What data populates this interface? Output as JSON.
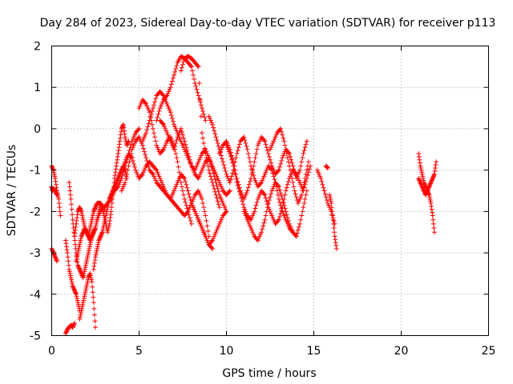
{
  "chart_data": {
    "type": "scatter",
    "title": "Day 284 of 2023, Sidereal Day-to-day VTEC variation (SDTVAR) for receiver p113",
    "xlabel": "GPS time / hours",
    "ylabel": "SDTVAR / TECUs",
    "xlim": [
      0,
      25
    ],
    "ylim": [
      -5,
      2
    ],
    "xticks": [
      0,
      5,
      10,
      15,
      20,
      25
    ],
    "yticks": [
      -5,
      -4,
      -3,
      -2,
      -1,
      0,
      1,
      2
    ],
    "xtick_labels": [
      "0",
      "5",
      "10",
      "15",
      "20",
      "25"
    ],
    "ytick_labels": [
      "-5",
      "-4",
      "-3",
      "-2",
      "-1",
      "0",
      "1",
      "2"
    ],
    "grid": true,
    "marker": "+",
    "series_color": "#ff0000",
    "series": [
      {
        "name": "s1",
        "x": [
          0.0,
          0.1,
          0.2,
          0.3,
          0.4,
          0.5
        ],
        "y": [
          -0.9,
          -1.0,
          -1.2,
          -1.5,
          -1.7,
          -2.1
        ]
      },
      {
        "name": "s2",
        "x": [
          0.0,
          0.1,
          0.2,
          0.3
        ],
        "y": [
          -2.9,
          -3.0,
          -3.1,
          -3.2
        ]
      },
      {
        "name": "s3",
        "x": [
          0.0,
          0.05,
          0.1,
          0.2,
          0.3
        ],
        "y": [
          -1.4,
          -1.5,
          -1.45,
          -1.5,
          -1.6
        ]
      },
      {
        "name": "s4",
        "x": [
          0.8,
          0.9,
          1.0,
          1.1,
          1.2,
          1.3
        ],
        "y": [
          -4.95,
          -4.85,
          -4.8,
          -4.75,
          -4.8,
          -4.7
        ]
      },
      {
        "name": "s5",
        "x": [
          0.8,
          0.9,
          1.0,
          1.1,
          1.2,
          1.3,
          1.4,
          1.5,
          1.6
        ],
        "y": [
          -2.7,
          -3.0,
          -3.4,
          -3.6,
          -3.8,
          -3.9,
          -4.0,
          -4.2,
          -4.4
        ]
      },
      {
        "name": "s6",
        "x": [
          1.0,
          1.1,
          1.2,
          1.3,
          1.4,
          1.5,
          1.6,
          1.7,
          1.8,
          1.9,
          2.0,
          2.1,
          2.2,
          2.3,
          2.4,
          2.5
        ],
        "y": [
          -1.3,
          -1.7,
          -2.2,
          -2.6,
          -3.0,
          -3.3,
          -3.4,
          -3.5,
          -3.6,
          -3.4,
          -3.2,
          -3.0,
          -2.8,
          -2.6,
          -2.5,
          -2.4
        ]
      },
      {
        "name": "s7",
        "x": [
          1.3,
          1.4,
          1.5,
          1.6,
          1.7,
          1.8,
          1.9,
          2.0,
          2.1,
          2.2,
          2.3,
          2.4,
          2.5,
          2.6,
          2.7,
          2.8,
          2.9,
          3.0,
          3.1,
          3.2,
          3.3,
          3.4,
          3.5,
          3.6,
          3.7,
          3.8,
          3.9,
          4.0,
          4.1,
          4.2,
          4.3,
          4.4
        ],
        "y": [
          -2.6,
          -2.3,
          -2.0,
          -1.9,
          -2.0,
          -2.2,
          -2.4,
          -2.5,
          -2.6,
          -2.7,
          -2.6,
          -2.5,
          -2.4,
          -2.2,
          -2.0,
          -1.8,
          -1.9,
          -2.1,
          -2.3,
          -2.5,
          -2.3,
          -2.0,
          -1.6,
          -1.2,
          -0.9,
          -0.6,
          -0.3,
          0.0,
          0.1,
          -0.2,
          -0.4,
          -0.3
        ]
      },
      {
        "name": "s8",
        "x": [
          1.4,
          1.5,
          1.6,
          1.7,
          1.8,
          1.9,
          2.0,
          2.1,
          2.2,
          2.3,
          2.4,
          2.5,
          2.6,
          2.7,
          2.8,
          2.9,
          3.0
        ],
        "y": [
          -3.2,
          -3.0,
          -2.8,
          -2.6,
          -2.5,
          -2.4,
          -2.5,
          -2.6,
          -2.4,
          -2.2,
          -2.0,
          -1.9,
          -1.8,
          -1.8,
          -1.8,
          -1.9,
          -2.0
        ]
      },
      {
        "name": "s9",
        "x": [
          1.6,
          1.7,
          1.8,
          1.9,
          2.0,
          2.1,
          2.2,
          2.3,
          2.4,
          2.5
        ],
        "y": [
          -4.6,
          -4.4,
          -4.2,
          -4.0,
          -3.8,
          -3.6,
          -3.5,
          -3.7,
          -4.2,
          -4.8
        ]
      },
      {
        "name": "s10",
        "x": [
          2.4,
          2.5,
          2.6,
          2.7,
          2.8,
          2.9,
          3.0,
          3.1,
          3.2,
          3.3,
          3.4,
          3.5,
          3.6,
          3.7,
          3.8,
          3.9,
          4.0,
          4.1,
          4.2,
          4.3
        ],
        "y": [
          -3.4,
          -3.1,
          -2.9,
          -2.7,
          -2.6,
          -2.5,
          -2.3,
          -2.1,
          -1.9,
          -1.7,
          -1.6,
          -1.5,
          -1.4,
          -1.3,
          -1.2,
          -1.1,
          -1.0,
          -0.9,
          -1.0,
          -1.2
        ]
      },
      {
        "name": "s11",
        "x": [
          2.6,
          2.8,
          3.0,
          3.2,
          3.4,
          3.6,
          3.8,
          4.0,
          4.2,
          4.4,
          4.6,
          4.8,
          5.0
        ],
        "y": [
          -2.2,
          -2.0,
          -1.9,
          -1.8,
          -1.7,
          -1.5,
          -1.4,
          -1.2,
          -0.9,
          -0.6,
          -0.3,
          -0.1,
          0.0
        ]
      },
      {
        "name": "s12",
        "x": [
          4.0,
          4.2,
          4.4,
          4.6,
          4.8,
          5.0,
          5.2,
          5.4,
          5.6,
          5.8,
          6.0,
          6.2,
          6.4,
          6.6,
          6.8,
          7.0,
          7.2,
          7.4,
          7.6,
          7.8,
          8.0,
          8.2,
          8.4,
          8.6,
          8.8,
          9.0
        ],
        "y": [
          -1.5,
          -1.3,
          -0.9,
          -0.5,
          -0.3,
          -0.2,
          -0.4,
          -0.7,
          -1.0,
          -1.1,
          -1.3,
          -1.4,
          -1.5,
          -1.6,
          -1.7,
          -1.8,
          -1.9,
          -2.0,
          -2.1,
          -2.0,
          -1.8,
          -1.6,
          -1.5,
          -1.7,
          -2.1,
          -2.6
        ]
      },
      {
        "name": "s13",
        "x": [
          4.0,
          4.2,
          4.4,
          4.6,
          4.8,
          5.0,
          5.2,
          5.4,
          5.6,
          5.8,
          6.0,
          6.2,
          6.4,
          6.6,
          6.8,
          7.0,
          7.2,
          7.4,
          7.6,
          7.8,
          8.0,
          8.2,
          8.4,
          8.6,
          8.8,
          9.0,
          9.2
        ],
        "y": [
          -1.0,
          -0.8,
          -0.6,
          -0.7,
          -1.0,
          -1.2,
          -1.1,
          -0.9,
          -0.8,
          -0.9,
          -1.0,
          -1.2,
          -1.4,
          -1.6,
          -1.7,
          -1.5,
          -1.3,
          -1.1,
          -1.2,
          -1.5,
          -1.8,
          -2.0,
          -2.2,
          -2.4,
          -2.6,
          -2.8,
          -2.9
        ]
      },
      {
        "name": "s14",
        "x": [
          5.0,
          5.2,
          5.4,
          5.6,
          5.8,
          6.0,
          6.2,
          6.4,
          6.6,
          6.8,
          7.0,
          7.2,
          7.4,
          7.6,
          7.8,
          8.0
        ],
        "y": [
          0.5,
          0.7,
          0.6,
          0.4,
          0.0,
          -0.4,
          -0.6,
          -0.5,
          -0.3,
          -0.2,
          -0.4,
          -0.8,
          -1.3,
          -1.7,
          -2.0,
          -2.3
        ]
      },
      {
        "name": "s15",
        "x": [
          5.2,
          5.4,
          5.6,
          5.8,
          6.0,
          6.2,
          6.4,
          6.6,
          6.8,
          7.0,
          7.2,
          7.4,
          7.6,
          7.8,
          8.0,
          8.2,
          8.4,
          8.6,
          8.8,
          9.0,
          9.2,
          9.4,
          9.6,
          9.8,
          10.0
        ],
        "y": [
          -0.3,
          -0.1,
          0.2,
          0.5,
          0.8,
          0.9,
          0.8,
          0.6,
          0.4,
          0.1,
          -0.1,
          -0.3,
          -0.5,
          -0.7,
          -0.9,
          -1.0,
          -0.8,
          -0.6,
          -0.5,
          -0.7,
          -1.0,
          -1.3,
          -1.6,
          -1.8,
          -2.0
        ]
      },
      {
        "name": "s16",
        "x": [
          6.0,
          6.2,
          6.4,
          6.6,
          6.8,
          7.0,
          7.2,
          7.4,
          7.6,
          7.8,
          8.0,
          8.2,
          8.4,
          8.6,
          8.8
        ],
        "y": [
          0.2,
          0.5,
          0.7,
          0.8,
          1.0,
          1.3,
          1.6,
          1.75,
          1.7,
          1.6,
          1.5,
          1.1,
          0.8,
          0.5,
          0.2
        ]
      },
      {
        "name": "s17",
        "x": [
          6.2,
          6.4,
          6.6,
          6.8,
          7.0,
          7.2,
          7.4,
          7.6,
          7.8,
          8.0,
          8.2,
          8.4,
          8.6,
          8.8,
          9.0,
          9.2,
          9.4,
          9.6,
          9.8,
          10.0,
          10.2
        ],
        "y": [
          0.2,
          0.1,
          -0.1,
          -0.3,
          -0.5,
          -0.2,
          0.0,
          -0.3,
          -0.6,
          -0.9,
          -1.1,
          -1.2,
          -1.0,
          -0.8,
          -0.7,
          -0.9,
          -1.1,
          -1.3,
          -1.5,
          -1.6,
          -1.5
        ]
      },
      {
        "name": "s18",
        "x": [
          7.4,
          7.6,
          7.8,
          8.0,
          8.2,
          8.4,
          8.6,
          8.8,
          9.0,
          9.2,
          9.4,
          9.6
        ],
        "y": [
          1.4,
          1.7,
          1.75,
          1.7,
          1.6,
          1.5,
          -0.1,
          -0.6,
          -1.0,
          -1.3,
          -1.6,
          -1.9
        ]
      },
      {
        "name": "s19",
        "x": [
          8.0,
          8.2,
          8.4,
          8.6,
          8.8,
          9.0,
          9.2,
          9.4,
          9.6,
          9.8,
          10.0
        ],
        "y": [
          -1.8,
          -2.0,
          -2.2,
          -2.4,
          -2.6,
          -2.8,
          -2.7,
          -2.5,
          -2.3,
          -2.1,
          -2.0
        ]
      },
      {
        "name": "s20",
        "x": [
          9.0,
          9.2,
          9.4,
          9.6,
          9.8,
          10.0,
          10.2,
          10.4,
          10.6,
          10.8,
          11.0,
          11.2,
          11.4,
          11.6,
          11.8,
          12.0,
          12.2,
          12.4,
          12.6,
          12.8,
          13.0,
          13.2,
          13.4,
          13.6,
          13.8,
          14.0
        ],
        "y": [
          0.3,
          0.1,
          -0.2,
          -0.5,
          -0.8,
          -1.1,
          -1.3,
          -1.0,
          -0.6,
          -0.3,
          -0.2,
          -0.5,
          -0.9,
          -1.2,
          -1.4,
          -1.3,
          -1.1,
          -0.9,
          -1.0,
          -1.3,
          -1.7,
          -2.0,
          -2.2,
          -2.4,
          -2.5,
          -2.6
        ]
      },
      {
        "name": "s21",
        "x": [
          9.6,
          9.8,
          10.0,
          10.2,
          10.4,
          10.6,
          10.8,
          11.0,
          11.2,
          11.4,
          11.6,
          11.8,
          12.0,
          12.2,
          12.4,
          12.6,
          12.8,
          13.0,
          13.2,
          13.4,
          13.6,
          13.8,
          14.0,
          14.2,
          14.4,
          14.6
        ],
        "y": [
          -0.6,
          -0.4,
          -0.3,
          -0.5,
          -0.8,
          -1.2,
          -1.5,
          -1.7,
          -1.5,
          -1.2,
          -0.8,
          -0.4,
          -0.2,
          -0.3,
          -0.6,
          -0.9,
          -1.1,
          -1.0,
          -0.7,
          -0.5,
          -0.6,
          -0.9,
          -1.2,
          -1.0,
          -0.6,
          -0.3
        ]
      },
      {
        "name": "s22",
        "x": [
          10.0,
          10.2,
          10.4,
          10.6,
          10.8,
          11.0,
          11.2,
          11.4,
          11.6,
          11.8,
          12.0,
          12.2,
          12.4,
          12.6,
          12.8,
          13.0,
          13.2,
          13.4,
          13.6,
          13.8,
          14.0,
          14.2,
          14.4,
          14.6,
          14.8
        ],
        "y": [
          -0.4,
          -0.6,
          -0.9,
          -1.3,
          -1.6,
          -1.9,
          -2.1,
          -2.2,
          -2.0,
          -1.7,
          -1.5,
          -1.6,
          -1.9,
          -2.1,
          -2.3,
          -2.2,
          -1.9,
          -1.5,
          -1.2,
          -1.0,
          -1.1,
          -1.3,
          -1.5,
          -1.2,
          -0.9
        ]
      },
      {
        "name": "s23",
        "x": [
          11.0,
          11.2,
          11.4,
          11.6,
          11.8,
          12.0,
          12.2,
          12.4,
          12.6,
          12.8,
          13.0,
          13.2,
          13.4,
          13.6,
          13.8,
          14.0,
          14.2,
          14.4,
          14.6
        ],
        "y": [
          -2.0,
          -2.2,
          -2.4,
          -2.6,
          -2.7,
          -2.5,
          -2.2,
          -1.8,
          -1.5,
          -1.3,
          -1.4,
          -1.7,
          -2.0,
          -2.3,
          -2.5,
          -2.6,
          -2.3,
          -1.9,
          -1.5
        ]
      },
      {
        "name": "s24",
        "x": [
          12.5,
          12.7,
          12.9,
          13.1,
          13.3,
          13.5,
          13.7,
          13.9,
          14.1,
          14.3,
          14.5,
          14.7
        ],
        "y": [
          -0.5,
          -0.3,
          -0.1,
          0.0,
          -0.3,
          -0.7,
          -1.1,
          -1.5,
          -1.8,
          -1.6,
          -1.2,
          -0.8
        ]
      },
      {
        "name": "s25",
        "x": [
          15.2,
          15.4,
          15.6,
          15.8,
          16.0,
          16.2
        ],
        "y": [
          -1.0,
          -1.2,
          -1.5,
          -1.8,
          -2.0,
          -2.3
        ]
      },
      {
        "name": "s26",
        "x": [
          15.7,
          15.8
        ],
        "y": [
          -0.9,
          -0.95
        ]
      },
      {
        "name": "s27",
        "x": [
          15.9,
          16.0,
          16.1,
          16.2,
          16.3
        ],
        "y": [
          -1.6,
          -1.8,
          -2.2,
          -2.6,
          -2.9
        ]
      },
      {
        "name": "s28",
        "x": [
          21.0,
          21.1,
          21.2,
          21.3,
          21.4,
          21.5,
          21.6,
          21.7,
          21.8,
          21.9
        ],
        "y": [
          -0.6,
          -0.9,
          -1.1,
          -1.3,
          -1.4,
          -1.5,
          -1.6,
          -1.8,
          -2.1,
          -2.5
        ]
      },
      {
        "name": "s29",
        "x": [
          21.0,
          21.1,
          21.2,
          21.3,
          21.4,
          21.5,
          21.6,
          21.7,
          21.8,
          21.9,
          22.0
        ],
        "y": [
          -1.2,
          -1.3,
          -1.4,
          -1.5,
          -1.6,
          -1.5,
          -1.4,
          -1.3,
          -1.2,
          -1.1,
          -0.8
        ]
      }
    ]
  }
}
